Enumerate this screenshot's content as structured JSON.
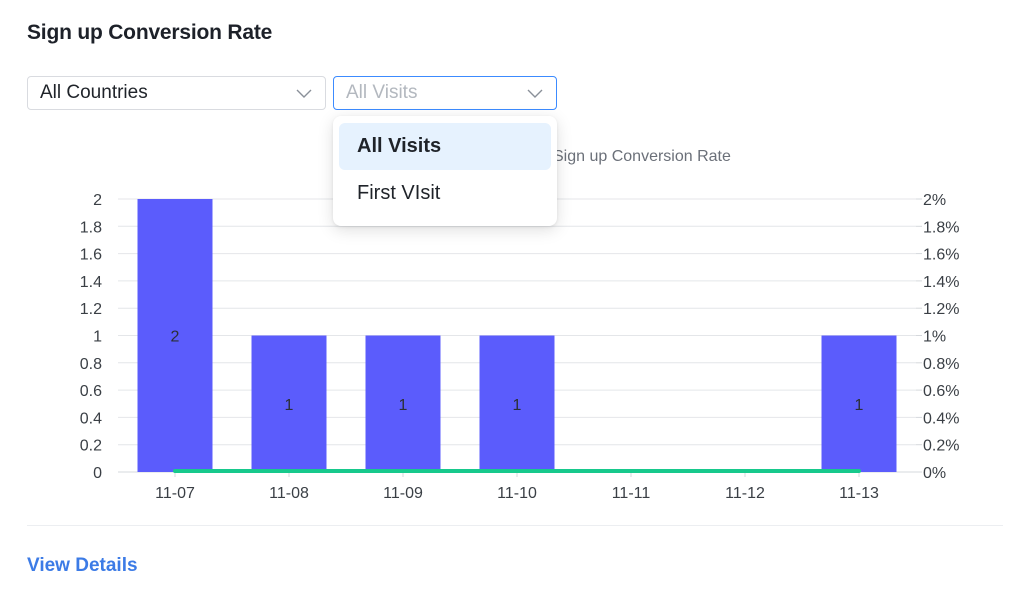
{
  "card": {
    "title": "Sign up Conversion Rate",
    "details_link": "View Details"
  },
  "filters": {
    "country": {
      "value": "All Countries"
    },
    "visit_type": {
      "value": "All Visits",
      "options": [
        "All Visits",
        "First VIsit"
      ],
      "selected_index": 0
    }
  },
  "colors": {
    "bar": "#5b5cfc",
    "line": "#17c98c",
    "accent": "#3c8bff",
    "link": "#3c7be6",
    "grid": "#e4e6e9",
    "selected_option_bg": "#e6f2fe"
  },
  "icons": {
    "select_arrow": "chevron-down-icon"
  },
  "chart_data": {
    "type": "bar",
    "legend_text": "Sign up Conversion Rate",
    "categories": [
      "11-07",
      "11-08",
      "11-09",
      "11-10",
      "11-11",
      "11-12",
      "11-13"
    ],
    "series": [
      {
        "type": "bar",
        "axis": "left",
        "values": [
          2,
          1,
          1,
          1,
          0,
          0,
          1
        ],
        "data_labels": [
          "2",
          "1",
          "1",
          "1",
          "",
          "",
          "1"
        ]
      },
      {
        "name": "Sign up Conversion Rate",
        "type": "line",
        "axis": "right",
        "values": [
          0,
          0,
          0,
          0,
          0,
          0,
          0
        ]
      }
    ],
    "y_left": {
      "min": 0,
      "max": 2,
      "ticks": [
        "0",
        "0.2",
        "0.4",
        "0.6",
        "0.8",
        "1",
        "1.2",
        "1.4",
        "1.6",
        "1.8",
        "2"
      ]
    },
    "y_right": {
      "min": 0,
      "max": 2,
      "unit": "%",
      "ticks": [
        "0%",
        "0.2%",
        "0.4%",
        "0.6%",
        "0.8%",
        "1%",
        "1.2%",
        "1.4%",
        "1.6%",
        "1.8%",
        "2%"
      ]
    },
    "grid": true
  }
}
